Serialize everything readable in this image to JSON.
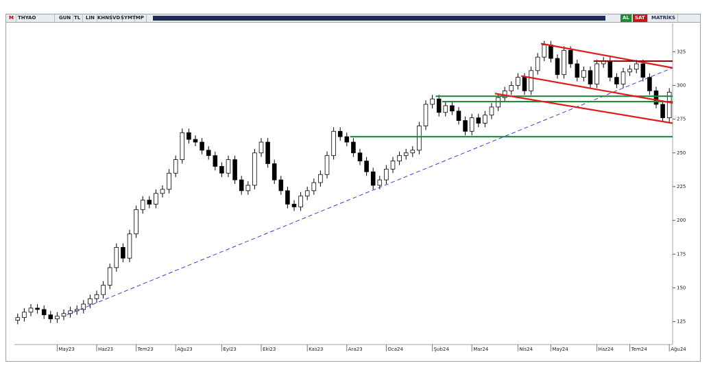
{
  "toolbar": {
    "logo": "M",
    "symbol": "THYAO",
    "buttons": [
      "GUN",
      "TL",
      "LIN",
      "KHN",
      "SVD",
      "SYM",
      "TMP"
    ],
    "actions": [
      "AL",
      "SAT"
    ],
    "brand": "MATRİKS"
  },
  "chart_data": {
    "type": "candlestick",
    "categories": [
      null,
      null,
      null,
      null,
      null,
      null,
      "May23",
      null,
      null,
      null,
      null,
      null,
      "Haz23",
      null,
      null,
      null,
      null,
      null,
      "Tem23",
      null,
      null,
      null,
      null,
      null,
      "Ağu23",
      null,
      null,
      null,
      null,
      null,
      null,
      "Eyl23",
      null,
      null,
      null,
      null,
      null,
      "Eki23",
      null,
      null,
      null,
      null,
      null,
      null,
      "Kas23",
      null,
      null,
      null,
      null,
      null,
      "Ara23",
      null,
      null,
      null,
      null,
      null,
      "Oca24",
      null,
      null,
      null,
      null,
      null,
      null,
      "Şub24",
      null,
      null,
      null,
      null,
      null,
      "Mar24",
      null,
      null,
      null,
      null,
      null,
      null,
      "Nis24",
      null,
      null,
      null,
      null,
      "May24",
      null,
      null,
      null,
      null,
      null,
      null,
      "Haz24",
      null,
      null,
      null,
      null,
      "Tem24",
      null,
      null,
      null,
      null,
      null,
      "Ağu24"
    ],
    "open": [
      126,
      128,
      132,
      135,
      134,
      130,
      127,
      129,
      131,
      133,
      134,
      138,
      142,
      145,
      152,
      165,
      180,
      172,
      190,
      208,
      215,
      212,
      220,
      223,
      235,
      245,
      265,
      260,
      258,
      252,
      248,
      240,
      235,
      245,
      230,
      222,
      226,
      250,
      258,
      242,
      230,
      222,
      212,
      210,
      218,
      222,
      228,
      234,
      248,
      266,
      262,
      258,
      250,
      244,
      236,
      226,
      230,
      238,
      244,
      248,
      250,
      252,
      270,
      286,
      290,
      280,
      285,
      281,
      274,
      266,
      276,
      272,
      278,
      284,
      291,
      296,
      300,
      306,
      296,
      311,
      321,
      330,
      320,
      308,
      326,
      316,
      306,
      311,
      301,
      316,
      318,
      306,
      301,
      310,
      312,
      316,
      306,
      296,
      286,
      276
    ],
    "high": [
      131,
      135,
      138,
      138,
      137,
      133,
      132,
      134,
      136,
      137,
      141,
      145,
      148,
      155,
      168,
      183,
      183,
      193,
      211,
      218,
      218,
      223,
      226,
      238,
      248,
      268,
      268,
      263,
      261,
      255,
      251,
      243,
      248,
      248,
      233,
      229,
      253,
      261,
      261,
      245,
      233,
      225,
      215,
      221,
      225,
      231,
      237,
      251,
      269,
      269,
      265,
      261,
      253,
      247,
      239,
      233,
      241,
      247,
      251,
      253,
      255,
      273,
      289,
      293,
      293,
      288,
      288,
      284,
      277,
      279,
      279,
      281,
      287,
      294,
      299,
      303,
      309,
      309,
      314,
      324,
      333,
      333,
      323,
      329,
      329,
      319,
      314,
      314,
      319,
      321,
      321,
      309,
      313,
      315,
      319,
      319,
      309,
      299,
      289,
      298
    ],
    "low": [
      123,
      125,
      129,
      131,
      127,
      124,
      124,
      126,
      128,
      130,
      131,
      135,
      139,
      142,
      149,
      162,
      169,
      169,
      187,
      205,
      209,
      209,
      217,
      220,
      232,
      242,
      257,
      255,
      249,
      245,
      237,
      232,
      232,
      227,
      219,
      219,
      223,
      247,
      239,
      227,
      219,
      209,
      207,
      207,
      215,
      219,
      225,
      231,
      245,
      259,
      255,
      247,
      241,
      233,
      223,
      223,
      227,
      235,
      241,
      245,
      247,
      249,
      267,
      283,
      277,
      277,
      278,
      271,
      263,
      263,
      269,
      269,
      275,
      281,
      288,
      293,
      297,
      293,
      293,
      308,
      318,
      317,
      305,
      305,
      313,
      303,
      303,
      298,
      298,
      313,
      303,
      298,
      298,
      307,
      309,
      303,
      293,
      283,
      273,
      273
    ],
    "close": [
      128,
      132,
      135,
      134,
      130,
      127,
      129,
      131,
      133,
      134,
      138,
      142,
      145,
      152,
      165,
      180,
      172,
      190,
      208,
      215,
      212,
      220,
      223,
      235,
      245,
      265,
      260,
      258,
      252,
      248,
      240,
      235,
      245,
      230,
      222,
      226,
      250,
      258,
      242,
      230,
      222,
      212,
      210,
      218,
      222,
      228,
      234,
      248,
      266,
      262,
      258,
      250,
      244,
      236,
      226,
      230,
      238,
      244,
      248,
      250,
      252,
      270,
      286,
      290,
      280,
      285,
      281,
      274,
      266,
      276,
      272,
      278,
      284,
      291,
      296,
      300,
      306,
      296,
      311,
      321,
      330,
      320,
      308,
      326,
      316,
      306,
      311,
      301,
      316,
      318,
      306,
      301,
      310,
      312,
      316,
      306,
      296,
      286,
      276,
      295
    ],
    "up_color": "#ffffff",
    "down_color": "#000000",
    "ylim": [
      108,
      346
    ],
    "yticks": [
      125,
      150,
      175,
      200,
      225,
      250,
      275,
      300,
      325
    ],
    "grid": false,
    "drawings": [
      {
        "color": "#3b3bc8",
        "dash": true,
        "x": [
          8,
          100
        ],
        "y": [
          130,
          313
        ]
      },
      {
        "color": "#1f8a3a",
        "dash": false,
        "x": [
          51,
          100
        ],
        "y": [
          262,
          262
        ]
      },
      {
        "color": "#1f8a3a",
        "dash": false,
        "x": [
          64,
          100
        ],
        "y": [
          292,
          292
        ]
      },
      {
        "color": "#1f8a3a",
        "dash": false,
        "x": [
          65,
          100
        ],
        "y": [
          288,
          288
        ]
      },
      {
        "color": "#e01b1b",
        "dash": false,
        "x": [
          80,
          100
        ],
        "y": [
          331,
          313
        ]
      },
      {
        "color": "#e01b1b",
        "dash": false,
        "x": [
          77,
          100
        ],
        "y": [
          307,
          287
        ]
      },
      {
        "color": "#e01b1b",
        "dash": false,
        "x": [
          73,
          100
        ],
        "y": [
          294,
          272
        ]
      },
      {
        "color": "#8a1010",
        "dash": false,
        "x": [
          88,
          100
        ],
        "y": [
          318,
          318
        ]
      }
    ]
  }
}
